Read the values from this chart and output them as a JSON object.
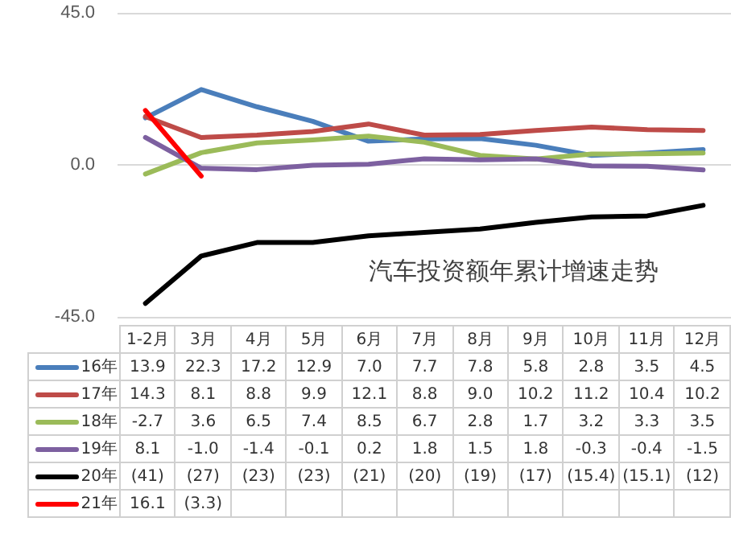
{
  "chart_data": {
    "type": "line",
    "title": "汽车投资额年累计增速走势",
    "categories": [
      "1-2月",
      "3月",
      "4月",
      "5月",
      "6月",
      "7月",
      "8月",
      "9月",
      "10月",
      "11月",
      "12月"
    ],
    "series": [
      {
        "name": "16年",
        "color": "#4a7ebb",
        "values": [
          13.9,
          22.3,
          17.2,
          12.9,
          7.0,
          7.7,
          7.8,
          5.8,
          2.8,
          3.5,
          4.5
        ],
        "value_labels": [
          "13.9",
          "22.3",
          "17.2",
          "12.9",
          "7.0",
          "7.7",
          "7.8",
          "5.8",
          "2.8",
          "3.5",
          "4.5"
        ]
      },
      {
        "name": "17年",
        "color": "#be4b48",
        "values": [
          14.3,
          8.1,
          8.8,
          9.9,
          12.1,
          8.8,
          9.0,
          10.2,
          11.2,
          10.4,
          10.2
        ],
        "value_labels": [
          "14.3",
          "8.1",
          "8.8",
          "9.9",
          "12.1",
          "8.8",
          "9.0",
          "10.2",
          "11.2",
          "10.4",
          "10.2"
        ]
      },
      {
        "name": "18年",
        "color": "#9bbb59",
        "values": [
          -2.7,
          3.6,
          6.5,
          7.4,
          8.5,
          6.7,
          2.8,
          1.7,
          3.2,
          3.3,
          3.5
        ],
        "value_labels": [
          "-2.7",
          "3.6",
          "6.5",
          "7.4",
          "8.5",
          "6.7",
          "2.8",
          "1.7",
          "3.2",
          "3.3",
          "3.5"
        ]
      },
      {
        "name": "19年",
        "color": "#7d60a0",
        "values": [
          8.1,
          -1.0,
          -1.4,
          -0.1,
          0.2,
          1.8,
          1.5,
          1.8,
          -0.3,
          -0.4,
          -1.5
        ],
        "value_labels": [
          "8.1",
          "-1.0",
          "-1.4",
          "-0.1",
          "0.2",
          "1.8",
          "1.5",
          "1.8",
          "-0.3",
          "-0.4",
          "-1.5"
        ]
      },
      {
        "name": "20年",
        "color": "#000000",
        "values": [
          -41,
          -27,
          -23,
          -23,
          -21,
          -20,
          -19,
          -17,
          -15.4,
          -15.1,
          -12
        ],
        "value_labels": [
          "(41)",
          "(27)",
          "(23)",
          "(23)",
          "(21)",
          "(20)",
          "(19)",
          "(17)",
          "(15.4)",
          "(15.1)",
          "(12)"
        ]
      },
      {
        "name": "21年",
        "color": "#ff0000",
        "values": [
          16.1,
          -3.3,
          null,
          null,
          null,
          null,
          null,
          null,
          null,
          null,
          null
        ],
        "value_labels": [
          "16.1",
          "(3.3)",
          null,
          null,
          null,
          null,
          null,
          null,
          null,
          null,
          null
        ]
      }
    ],
    "ylim": [
      -45,
      45
    ],
    "yticks": [
      {
        "value": -45,
        "label": "-45.0"
      },
      {
        "value": 0,
        "label": "0.0"
      },
      {
        "value": 45,
        "label": "45.0"
      }
    ],
    "grid": "y",
    "legend": "bottom",
    "marker": "none",
    "line_style": "solid"
  }
}
